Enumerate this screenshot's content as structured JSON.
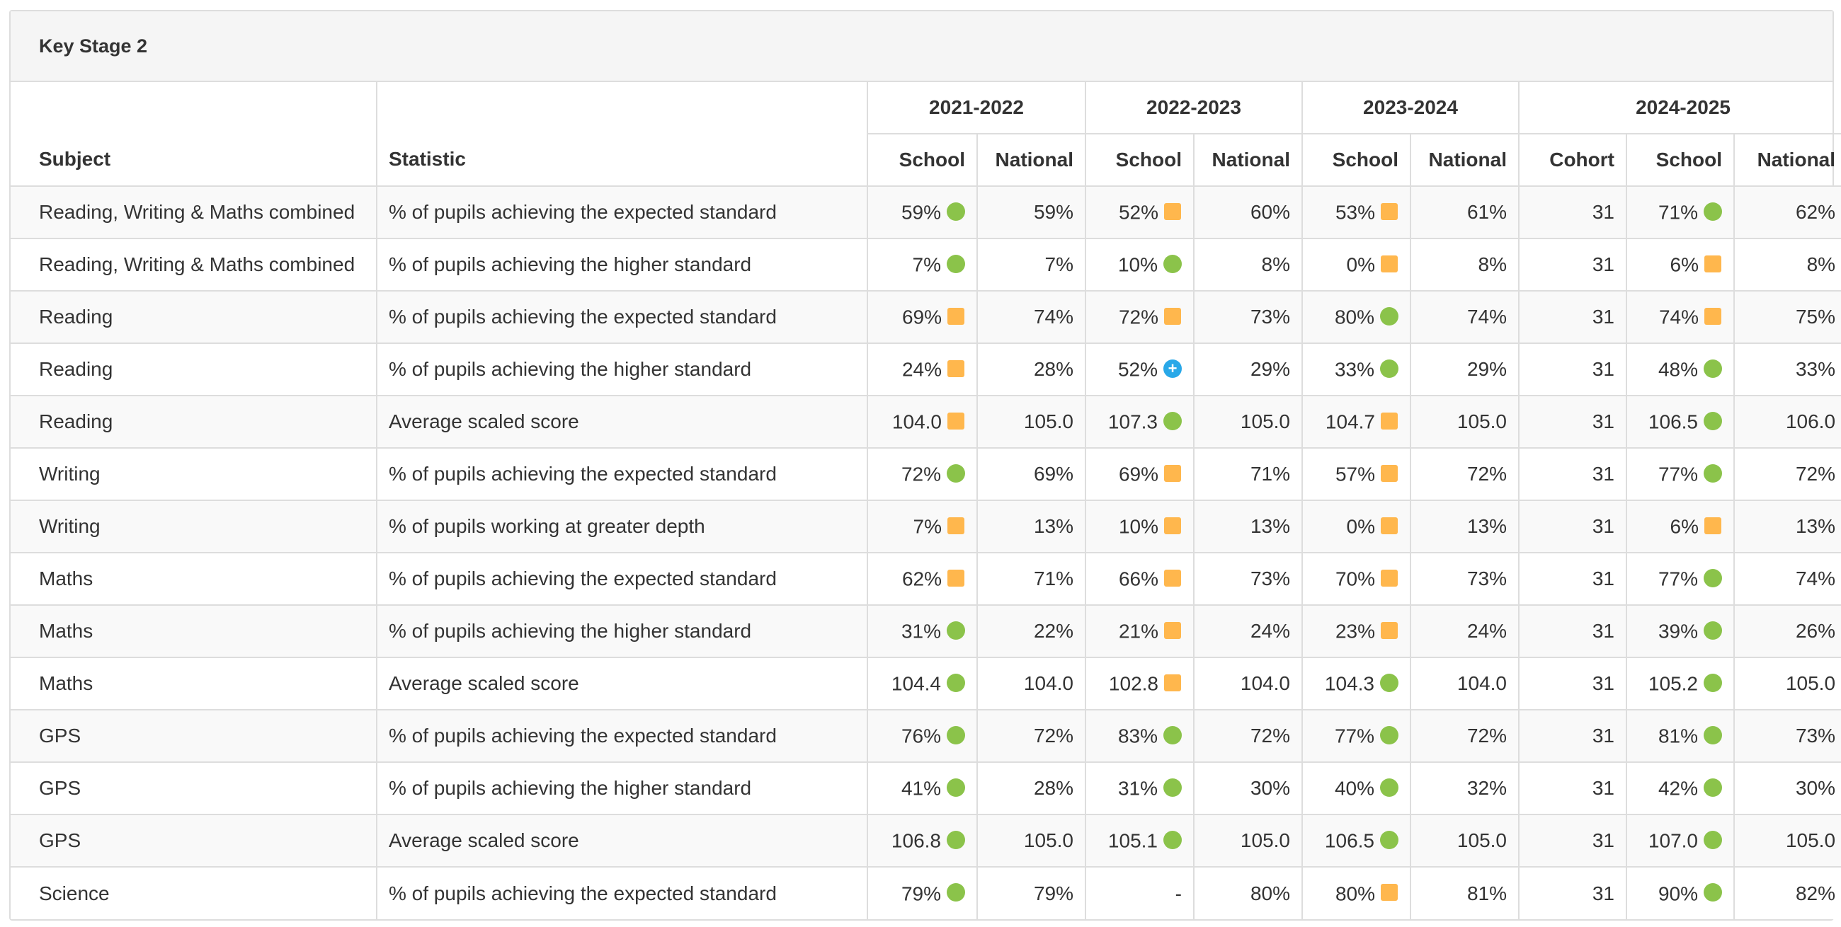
{
  "panel": {
    "title": "Key Stage 2"
  },
  "header": {
    "subject": "Subject",
    "statistic": "Statistic",
    "years": [
      {
        "label": "2021-2022",
        "cols": [
          "School",
          "National"
        ]
      },
      {
        "label": "2022-2023",
        "cols": [
          "School",
          "National"
        ]
      },
      {
        "label": "2023-2024",
        "cols": [
          "School",
          "National"
        ]
      },
      {
        "label": "2024-2025",
        "cols": [
          "Cohort",
          "School",
          "National"
        ]
      }
    ]
  },
  "indicators": {
    "green": {
      "color": "#8bc34a",
      "icon": "green-circle-icon"
    },
    "amber": {
      "color": "#ffb74d",
      "icon": "amber-square-icon"
    },
    "blue": {
      "color": "#29a8e8",
      "icon": "blue-plus-circle-icon",
      "glyph": "+"
    }
  },
  "rows": [
    {
      "subject": "Reading, Writing & Maths combined",
      "statistic": "% of pupils achieving the expected standard",
      "y1": {
        "school": "59%",
        "ind": "green",
        "national": "59%"
      },
      "y2": {
        "school": "52%",
        "ind": "amber",
        "national": "60%"
      },
      "y3": {
        "school": "53%",
        "ind": "amber",
        "national": "61%"
      },
      "y4": {
        "cohort": "31",
        "school": "71%",
        "ind": "green",
        "national": "62%"
      }
    },
    {
      "subject": "Reading, Writing & Maths combined",
      "statistic": "% of pupils achieving the higher standard",
      "y1": {
        "school": "7%",
        "ind": "green",
        "national": "7%"
      },
      "y2": {
        "school": "10%",
        "ind": "green",
        "national": "8%"
      },
      "y3": {
        "school": "0%",
        "ind": "amber",
        "national": "8%"
      },
      "y4": {
        "cohort": "31",
        "school": "6%",
        "ind": "amber",
        "national": "8%"
      }
    },
    {
      "subject": "Reading",
      "statistic": "% of pupils achieving the expected standard",
      "y1": {
        "school": "69%",
        "ind": "amber",
        "national": "74%"
      },
      "y2": {
        "school": "72%",
        "ind": "amber",
        "national": "73%"
      },
      "y3": {
        "school": "80%",
        "ind": "green",
        "national": "74%"
      },
      "y4": {
        "cohort": "31",
        "school": "74%",
        "ind": "amber",
        "national": "75%"
      }
    },
    {
      "subject": "Reading",
      "statistic": "% of pupils achieving the higher standard",
      "y1": {
        "school": "24%",
        "ind": "amber",
        "national": "28%"
      },
      "y2": {
        "school": "52%",
        "ind": "blue",
        "national": "29%"
      },
      "y3": {
        "school": "33%",
        "ind": "green",
        "national": "29%"
      },
      "y4": {
        "cohort": "31",
        "school": "48%",
        "ind": "green",
        "national": "33%"
      }
    },
    {
      "subject": "Reading",
      "statistic": "Average scaled score",
      "y1": {
        "school": "104.0",
        "ind": "amber",
        "national": "105.0"
      },
      "y2": {
        "school": "107.3",
        "ind": "green",
        "national": "105.0"
      },
      "y3": {
        "school": "104.7",
        "ind": "amber",
        "national": "105.0"
      },
      "y4": {
        "cohort": "31",
        "school": "106.5",
        "ind": "green",
        "national": "106.0"
      }
    },
    {
      "subject": "Writing",
      "statistic": "% of pupils achieving the expected standard",
      "y1": {
        "school": "72%",
        "ind": "green",
        "national": "69%"
      },
      "y2": {
        "school": "69%",
        "ind": "amber",
        "national": "71%"
      },
      "y3": {
        "school": "57%",
        "ind": "amber",
        "national": "72%"
      },
      "y4": {
        "cohort": "31",
        "school": "77%",
        "ind": "green",
        "national": "72%"
      }
    },
    {
      "subject": "Writing",
      "statistic": "% of pupils working at greater depth",
      "y1": {
        "school": "7%",
        "ind": "amber",
        "national": "13%"
      },
      "y2": {
        "school": "10%",
        "ind": "amber",
        "national": "13%"
      },
      "y3": {
        "school": "0%",
        "ind": "amber",
        "national": "13%"
      },
      "y4": {
        "cohort": "31",
        "school": "6%",
        "ind": "amber",
        "national": "13%"
      }
    },
    {
      "subject": "Maths",
      "statistic": "% of pupils achieving the expected standard",
      "y1": {
        "school": "62%",
        "ind": "amber",
        "national": "71%"
      },
      "y2": {
        "school": "66%",
        "ind": "amber",
        "national": "73%"
      },
      "y3": {
        "school": "70%",
        "ind": "amber",
        "national": "73%"
      },
      "y4": {
        "cohort": "31",
        "school": "77%",
        "ind": "green",
        "national": "74%"
      }
    },
    {
      "subject": "Maths",
      "statistic": "% of pupils achieving the higher standard",
      "y1": {
        "school": "31%",
        "ind": "green",
        "national": "22%"
      },
      "y2": {
        "school": "21%",
        "ind": "amber",
        "national": "24%"
      },
      "y3": {
        "school": "23%",
        "ind": "amber",
        "national": "24%"
      },
      "y4": {
        "cohort": "31",
        "school": "39%",
        "ind": "green",
        "national": "26%"
      }
    },
    {
      "subject": "Maths",
      "statistic": "Average scaled score",
      "y1": {
        "school": "104.4",
        "ind": "green",
        "national": "104.0"
      },
      "y2": {
        "school": "102.8",
        "ind": "amber",
        "national": "104.0"
      },
      "y3": {
        "school": "104.3",
        "ind": "green",
        "national": "104.0"
      },
      "y4": {
        "cohort": "31",
        "school": "105.2",
        "ind": "green",
        "national": "105.0"
      }
    },
    {
      "subject": "GPS",
      "statistic": "% of pupils achieving the expected standard",
      "y1": {
        "school": "76%",
        "ind": "green",
        "national": "72%"
      },
      "y2": {
        "school": "83%",
        "ind": "green",
        "national": "72%"
      },
      "y3": {
        "school": "77%",
        "ind": "green",
        "national": "72%"
      },
      "y4": {
        "cohort": "31",
        "school": "81%",
        "ind": "green",
        "national": "73%"
      }
    },
    {
      "subject": "GPS",
      "statistic": "% of pupils achieving the higher standard",
      "y1": {
        "school": "41%",
        "ind": "green",
        "national": "28%"
      },
      "y2": {
        "school": "31%",
        "ind": "green",
        "national": "30%"
      },
      "y3": {
        "school": "40%",
        "ind": "green",
        "national": "32%"
      },
      "y4": {
        "cohort": "31",
        "school": "42%",
        "ind": "green",
        "national": "30%"
      }
    },
    {
      "subject": "GPS",
      "statistic": "Average scaled score",
      "y1": {
        "school": "106.8",
        "ind": "green",
        "national": "105.0"
      },
      "y2": {
        "school": "105.1",
        "ind": "green",
        "national": "105.0"
      },
      "y3": {
        "school": "106.5",
        "ind": "green",
        "national": "105.0"
      },
      "y4": {
        "cohort": "31",
        "school": "107.0",
        "ind": "green",
        "national": "105.0"
      }
    },
    {
      "subject": "Science",
      "statistic": "% of pupils achieving the expected standard",
      "y1": {
        "school": "79%",
        "ind": "green",
        "national": "79%"
      },
      "y2": {
        "school": "-",
        "ind": "none",
        "national": "80%"
      },
      "y3": {
        "school": "80%",
        "ind": "amber",
        "national": "81%"
      },
      "y4": {
        "cohort": "31",
        "school": "90%",
        "ind": "green",
        "national": "82%"
      }
    }
  ]
}
